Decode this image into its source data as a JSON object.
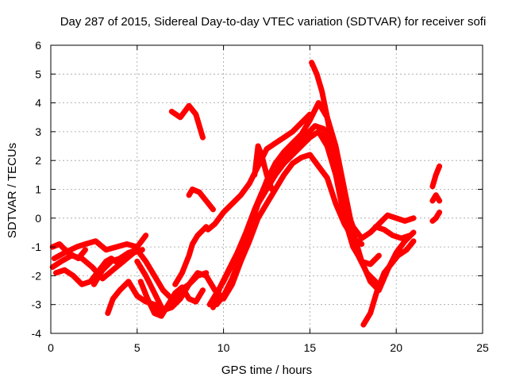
{
  "chart_data": {
    "type": "scatter",
    "title": "Day 287 of 2015, Sidereal Day-to-day VTEC variation (SDTVAR) for receiver sofi",
    "xlabel": "GPS time / hours",
    "ylabel": "SDTVAR / TECUs",
    "xlim": [
      0,
      25
    ],
    "ylim": [
      -4,
      6
    ],
    "xticks": [
      0,
      5,
      10,
      15,
      20,
      25
    ],
    "yticks": [
      -4,
      -3,
      -2,
      -1,
      0,
      1,
      2,
      3,
      4,
      5,
      6
    ],
    "grid": true,
    "legend": "none",
    "marker": "+",
    "color": "#ff0000",
    "series": [
      {
        "x": [
          0.1,
          0.5,
          1.0,
          1.6,
          2.0
        ],
        "y": [
          -1.0,
          -0.9,
          -1.2,
          -1.4,
          -1.1
        ]
      },
      {
        "x": [
          0.2,
          0.8,
          1.5,
          2.0,
          2.6,
          3.2,
          3.8,
          4.4,
          5.0,
          5.5
        ],
        "y": [
          -1.4,
          -1.2,
          -1.0,
          -0.9,
          -0.8,
          -1.1,
          -1.0,
          -0.9,
          -1.0,
          -0.6
        ]
      },
      {
        "x": [
          0.1,
          0.6,
          1.2,
          1.8,
          2.4,
          3.0,
          3.6,
          4.2,
          4.8,
          5.3
        ],
        "y": [
          -1.7,
          -1.5,
          -1.3,
          -1.4,
          -1.7,
          -2.1,
          -1.8,
          -1.5,
          -1.2,
          -1.1
        ]
      },
      {
        "x": [
          0.3,
          0.8,
          1.3,
          1.8,
          2.3,
          3.2,
          3.5,
          4.0
        ],
        "y": [
          -1.9,
          -1.8,
          -2.0,
          -2.3,
          -2.2,
          -1.5,
          -1.4,
          -1.6
        ]
      },
      {
        "x": [
          3.3,
          3.6,
          4.0,
          4.5,
          5.0,
          5.5,
          6.0,
          6.3,
          6.7,
          7.0,
          7.4
        ],
        "y": [
          -3.3,
          -2.8,
          -2.5,
          -2.2,
          -2.7,
          -2.9,
          -3.0,
          -3.3,
          -3.1,
          -2.9,
          -2.6
        ]
      },
      {
        "x": [
          2.5,
          3.0,
          3.5,
          4.0,
          4.5,
          5.0,
          5.5,
          6.0,
          6.5,
          7.0,
          7.5,
          8.0,
          8.5,
          9.0
        ],
        "y": [
          -2.3,
          -1.8,
          -1.5,
          -1.4,
          -1.2,
          -1.1,
          -1.5,
          -2.0,
          -2.5,
          -2.8,
          -2.5,
          -2.3,
          -2.0,
          -1.9
        ]
      },
      {
        "x": [
          5.0,
          5.5,
          6.0,
          6.5,
          7.0,
          7.5,
          8.0,
          8.5,
          9.0
        ],
        "y": [
          -1.5,
          -2.0,
          -2.6,
          -3.2,
          -3.1,
          -2.8,
          -2.3,
          -1.9,
          -2.0
        ]
      },
      {
        "x": [
          5.2,
          5.6,
          6.0,
          6.4,
          6.8,
          7.2,
          7.6,
          8.0,
          8.4,
          8.8
        ],
        "y": [
          -2.2,
          -2.8,
          -3.3,
          -3.4,
          -3.0,
          -2.6,
          -2.4,
          -2.8,
          -2.9,
          -2.5
        ]
      },
      {
        "x": [
          7.0,
          7.5,
          8.0,
          8.4,
          8.8
        ],
        "y": [
          3.7,
          3.5,
          3.9,
          3.6,
          2.8
        ]
      },
      {
        "x": [
          7.2,
          7.6,
          8.0,
          8.2,
          8.5,
          9.0
        ],
        "y": [
          -2.3,
          -1.9,
          -1.3,
          -0.9,
          -0.6,
          -0.3
        ]
      },
      {
        "x": [
          8.0,
          8.2,
          8.6,
          9.0,
          9.4
        ],
        "y": [
          0.8,
          1.0,
          0.9,
          0.6,
          0.3
        ]
      },
      {
        "x": [
          9.0,
          9.5,
          10.0,
          10.5,
          11.0,
          11.5,
          12.0,
          12.5,
          13.0,
          13.5,
          14.0,
          14.5,
          15.0,
          15.5,
          16.0,
          16.5,
          17.0,
          17.5,
          18.0
        ],
        "y": [
          -2.0,
          -2.5,
          -2.8,
          -2.3,
          -1.5,
          -0.8,
          0.0,
          0.5,
          1.0,
          1.5,
          1.9,
          2.1,
          2.2,
          1.8,
          1.4,
          0.5,
          -0.2,
          -0.7,
          -0.9
        ]
      },
      {
        "x": [
          9.2,
          9.6,
          10.0,
          10.5,
          11.0,
          11.5,
          12.0,
          12.5,
          13.0,
          13.5,
          14.0,
          14.5,
          15.0,
          15.5,
          16.0,
          16.5,
          17.0,
          17.5,
          18.0,
          18.5,
          19.0
        ],
        "y": [
          -3.0,
          -2.6,
          -2.2,
          -1.6,
          -1.0,
          -0.3,
          0.5,
          1.0,
          1.5,
          1.9,
          2.2,
          2.5,
          2.8,
          3.0,
          2.5,
          1.5,
          0.0,
          -1.0,
          -1.5,
          -1.6,
          -1.3
        ]
      },
      {
        "x": [
          9.4,
          9.8,
          10.3,
          10.8,
          11.3,
          11.8,
          12.3,
          12.8,
          13.3,
          13.8,
          14.3,
          14.8,
          15.3,
          15.8,
          16.3,
          16.8,
          17.3,
          17.8,
          18.3,
          18.8
        ],
        "y": [
          -3.1,
          -2.4,
          -1.8,
          -1.2,
          -0.5,
          0.3,
          1.0,
          1.6,
          2.0,
          2.3,
          2.6,
          2.9,
          3.2,
          3.1,
          2.3,
          1.0,
          -0.4,
          -1.3,
          -1.9,
          -2.2
        ]
      },
      {
        "x": [
          9.6,
          10.0,
          10.5,
          11.0,
          11.5,
          12.0,
          12.5,
          13.0,
          13.5,
          14.0,
          14.5,
          15.0,
          15.5,
          16.0,
          16.5,
          17.0,
          17.5,
          18.0,
          18.5,
          19.0,
          19.5,
          20.0,
          20.5,
          21.0
        ],
        "y": [
          -3.0,
          -2.7,
          -2.1,
          -1.3,
          -0.4,
          0.5,
          1.3,
          1.9,
          2.3,
          2.6,
          2.9,
          3.4,
          4.0,
          3.5,
          2.5,
          1.0,
          -0.5,
          -1.5,
          -2.2,
          -2.5,
          -1.8,
          -1.2,
          -0.8,
          -0.5
        ]
      },
      {
        "x": [
          9.1,
          9.5,
          10.0,
          10.5,
          11.0,
          11.5,
          12.0,
          12.5,
          13.0,
          13.5,
          14.0,
          14.5,
          15.0
        ],
        "y": [
          -0.4,
          -0.2,
          0.2,
          0.5,
          0.8,
          1.2,
          1.8,
          2.4,
          2.6,
          2.8,
          3.0,
          3.3,
          3.6
        ]
      },
      {
        "x": [
          11.8,
          12.0,
          12.2,
          12.5,
          12.8
        ],
        "y": [
          1.5,
          2.5,
          2.2,
          1.5,
          1.0
        ]
      },
      {
        "x": [
          15.1,
          15.4,
          15.7,
          16.0,
          16.3,
          16.6,
          17.0,
          17.5,
          18.0,
          18.5,
          19.0,
          19.5,
          20.0,
          20.5,
          21.0
        ],
        "y": [
          5.4,
          5.0,
          4.4,
          3.5,
          2.5,
          1.5,
          0.5,
          -0.3,
          -0.7,
          -0.5,
          -0.2,
          0.1,
          0.0,
          -0.1,
          0.0
        ]
      },
      {
        "x": [
          18.1,
          18.5,
          18.9,
          19.3,
          19.7,
          20.1,
          20.6,
          21.0
        ],
        "y": [
          -3.7,
          -3.3,
          -2.5,
          -1.9,
          -1.6,
          -1.3,
          -1.1,
          -0.8
        ]
      },
      {
        "x": [
          18.8,
          19.3,
          19.8,
          20.3,
          20.8
        ],
        "y": [
          -0.3,
          -0.4,
          -0.6,
          -0.7,
          -0.6
        ]
      },
      {
        "x": [
          22.1,
          22.3,
          22.5
        ],
        "y": [
          1.1,
          1.5,
          1.8
        ]
      },
      {
        "x": [
          22.1,
          22.3,
          22.5
        ],
        "y": [
          0.6,
          0.8,
          0.6
        ]
      },
      {
        "x": [
          22.1,
          22.3,
          22.5
        ],
        "y": [
          -0.1,
          0.0,
          0.2
        ]
      }
    ]
  }
}
